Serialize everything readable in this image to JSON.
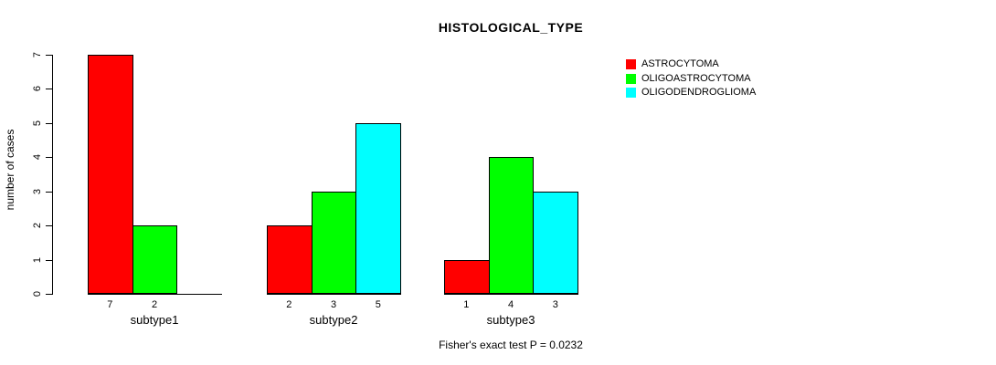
{
  "page": {
    "background": "#FFFFFF"
  },
  "chart_data": {
    "type": "bar",
    "title": "HISTOLOGICAL_TYPE",
    "ylabel": "number of cases",
    "xlabel": "",
    "ylim": [
      0,
      7
    ],
    "yticks": [
      0,
      1,
      2,
      3,
      4,
      5,
      6,
      7
    ],
    "categories": [
      "subtype1",
      "subtype2",
      "subtype3"
    ],
    "series": [
      {
        "name": "ASTROCYTOMA",
        "color": "#FF0000",
        "values": [
          7,
          2,
          1
        ]
      },
      {
        "name": "OLIGOASTROCYTOMA",
        "color": "#00FF00",
        "values": [
          2,
          3,
          4
        ]
      },
      {
        "name": "OLIGODENDROGLIOMA",
        "color": "#00FFFF",
        "values": [
          0,
          5,
          3
        ]
      }
    ],
    "bar_count_labels": [
      [
        "7",
        "2",
        ""
      ],
      [
        "2",
        "3",
        "5"
      ],
      [
        "1",
        "4",
        "3"
      ]
    ],
    "legend_position": "top-right",
    "grid": false,
    "annotation": "Fisher's exact test P = 0.0232",
    "axis_color": "#000000",
    "text_color": "#000000"
  }
}
